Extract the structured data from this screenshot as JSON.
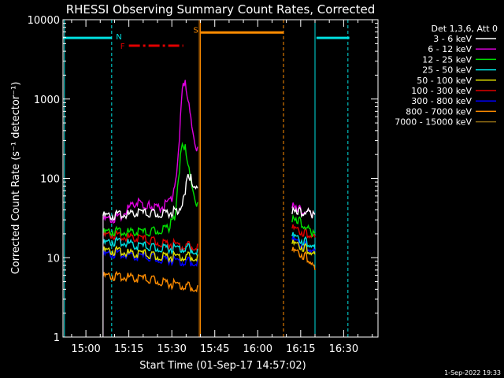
{
  "chart_data": {
    "type": "line",
    "title": "RHESSI Observing Summary Count Rates, Corrected",
    "xlabel": "Start Time (01-Sep-17 14:57:02)",
    "ylabel": "Corrected Count Rate (s⁻¹ detector⁻¹)",
    "ylim": [
      1,
      10000
    ],
    "yscale": "log",
    "xlim_minutes_after_start": [
      -5,
      105
    ],
    "x_ticks": [
      {
        "label": "15:00",
        "t": 3
      },
      {
        "label": "15:15",
        "t": 18
      },
      {
        "label": "15:30",
        "t": 33
      },
      {
        "label": "15:45",
        "t": 48
      },
      {
        "label": "16:00",
        "t": 63
      },
      {
        "label": "16:15",
        "t": 78
      },
      {
        "label": "16:30",
        "t": 93
      }
    ],
    "y_ticks": [
      {
        "label": "1",
        "v": 1
      },
      {
        "label": "10",
        "v": 10
      },
      {
        "label": "100",
        "v": 100
      },
      {
        "label": "1000",
        "v": 1000
      },
      {
        "label": "10000",
        "v": 10000
      }
    ],
    "legend": {
      "title": "Det 1,3,6, Att 0",
      "placement": "right"
    },
    "series": [
      {
        "name": "3 - 6 keV",
        "color": "#ffffff",
        "seg1": [
          [
            9,
            36
          ],
          [
            12,
            36
          ],
          [
            15,
            38
          ],
          [
            18,
            37
          ],
          [
            21,
            40
          ],
          [
            24,
            39
          ],
          [
            27,
            38
          ],
          [
            30,
            38
          ],
          [
            33,
            40
          ],
          [
            35,
            42
          ],
          [
            37,
            55
          ],
          [
            38,
            90
          ],
          [
            39,
            120
          ],
          [
            40,
            100
          ],
          [
            41,
            80
          ],
          [
            42,
            75
          ]
        ],
        "seg2": [
          [
            75,
            38
          ],
          [
            76,
            45
          ],
          [
            78,
            40
          ],
          [
            80,
            40
          ],
          [
            82,
            38
          ],
          [
            83,
            35
          ]
        ]
      },
      {
        "name": "6 - 12 keV",
        "color": "#e000e0",
        "seg1": [
          [
            9,
            32
          ],
          [
            12,
            33
          ],
          [
            15,
            35
          ],
          [
            18,
            45
          ],
          [
            21,
            55
          ],
          [
            23,
            48
          ],
          [
            25,
            50
          ],
          [
            27,
            45
          ],
          [
            30,
            47
          ],
          [
            33,
            60
          ],
          [
            35,
            150
          ],
          [
            36,
            600
          ],
          [
            37,
            1900
          ],
          [
            38,
            1500
          ],
          [
            39,
            900
          ],
          [
            40,
            450
          ],
          [
            41,
            300
          ],
          [
            42,
            250
          ]
        ],
        "seg2": [
          [
            75,
            45
          ],
          [
            76,
            50
          ],
          [
            78,
            42
          ],
          [
            80,
            40
          ],
          [
            82,
            38
          ],
          [
            83,
            35
          ]
        ]
      },
      {
        "name": "12 - 25 keV",
        "color": "#00e000",
        "seg1": [
          [
            9,
            22
          ],
          [
            12,
            23
          ],
          [
            15,
            23
          ],
          [
            18,
            22
          ],
          [
            21,
            23
          ],
          [
            24,
            22
          ],
          [
            27,
            23
          ],
          [
            30,
            24
          ],
          [
            32,
            26
          ],
          [
            34,
            35
          ],
          [
            35,
            75
          ],
          [
            36,
            200
          ],
          [
            37,
            300
          ],
          [
            38,
            230
          ],
          [
            39,
            140
          ],
          [
            40,
            80
          ],
          [
            41,
            60
          ],
          [
            42,
            50
          ]
        ],
        "seg2": [
          [
            75,
            30
          ],
          [
            76,
            35
          ],
          [
            78,
            30
          ],
          [
            80,
            25
          ],
          [
            82,
            22
          ],
          [
            83,
            20
          ]
        ]
      },
      {
        "name": "25 - 50 keV",
        "color": "#00e0e0",
        "seg1": [
          [
            9,
            16
          ],
          [
            12,
            17
          ],
          [
            15,
            17
          ],
          [
            18,
            16
          ],
          [
            21,
            15
          ],
          [
            24,
            15
          ],
          [
            27,
            14
          ],
          [
            30,
            14
          ],
          [
            33,
            14
          ],
          [
            36,
            14
          ],
          [
            39,
            14
          ],
          [
            42,
            13
          ]
        ],
        "seg2": [
          [
            75,
            20
          ],
          [
            78,
            18
          ],
          [
            80,
            17
          ],
          [
            82,
            15
          ],
          [
            83,
            13
          ]
        ]
      },
      {
        "name": "50 - 100 keV",
        "color": "#e0e000",
        "seg1": [
          [
            9,
            13
          ],
          [
            12,
            13
          ],
          [
            15,
            13
          ],
          [
            18,
            12
          ],
          [
            21,
            12
          ],
          [
            24,
            12
          ],
          [
            27,
            11
          ],
          [
            30,
            11
          ],
          [
            33,
            11
          ],
          [
            36,
            11
          ],
          [
            39,
            11
          ],
          [
            42,
            11
          ]
        ],
        "seg2": [
          [
            75,
            16
          ],
          [
            78,
            15
          ],
          [
            80,
            14
          ],
          [
            82,
            12
          ],
          [
            83,
            11
          ]
        ]
      },
      {
        "name": "100 - 300 keV",
        "color": "#e00000",
        "seg1": [
          [
            9,
            20
          ],
          [
            12,
            21
          ],
          [
            15,
            20
          ],
          [
            18,
            19
          ],
          [
            21,
            19
          ],
          [
            24,
            18
          ],
          [
            27,
            17
          ],
          [
            30,
            16
          ],
          [
            33,
            16
          ],
          [
            36,
            15
          ],
          [
            39,
            15
          ],
          [
            42,
            15
          ]
        ],
        "seg2": [
          [
            75,
            25
          ],
          [
            78,
            23
          ],
          [
            80,
            22
          ],
          [
            82,
            20
          ],
          [
            83,
            18
          ]
        ]
      },
      {
        "name": "300 - 800 keV",
        "color": "#0000ff",
        "seg1": [
          [
            9,
            11.5
          ],
          [
            12,
            12
          ],
          [
            15,
            12
          ],
          [
            18,
            11.5
          ],
          [
            21,
            11
          ],
          [
            24,
            11
          ],
          [
            27,
            10.5
          ],
          [
            30,
            10
          ],
          [
            33,
            10
          ],
          [
            36,
            9.5
          ],
          [
            39,
            9.5
          ],
          [
            42,
            9.5
          ]
        ],
        "seg2": [
          [
            75,
            18
          ],
          [
            78,
            16
          ],
          [
            80,
            15
          ],
          [
            82,
            13
          ],
          [
            83,
            12
          ]
        ]
      },
      {
        "name": "800 - 7000 keV",
        "color": "#ff8c00",
        "seg1": [
          [
            9,
            6.2
          ],
          [
            12,
            6.3
          ],
          [
            15,
            6.2
          ],
          [
            18,
            6.0
          ],
          [
            21,
            5.9
          ],
          [
            24,
            5.8
          ],
          [
            27,
            5.5
          ],
          [
            30,
            5.2
          ],
          [
            33,
            5.0
          ],
          [
            36,
            4.8
          ],
          [
            39,
            4.6
          ],
          [
            42,
            4.5
          ]
        ],
        "seg2": [
          [
            75,
            13
          ],
          [
            78,
            12
          ],
          [
            80,
            11
          ],
          [
            82,
            9
          ],
          [
            83,
            7
          ]
        ]
      },
      {
        "name": "7000 - 15000 keV",
        "color": "#8b6914",
        "seg1": [],
        "seg2": []
      }
    ],
    "annotations": {
      "night": {
        "label": "N",
        "color": "#00e0e0"
      },
      "flare": {
        "label": "F",
        "color": "#e00000"
      },
      "saa": {
        "label": "S",
        "color": "#ff8c00"
      }
    },
    "footer": "1-Sep-2022 19:33"
  }
}
